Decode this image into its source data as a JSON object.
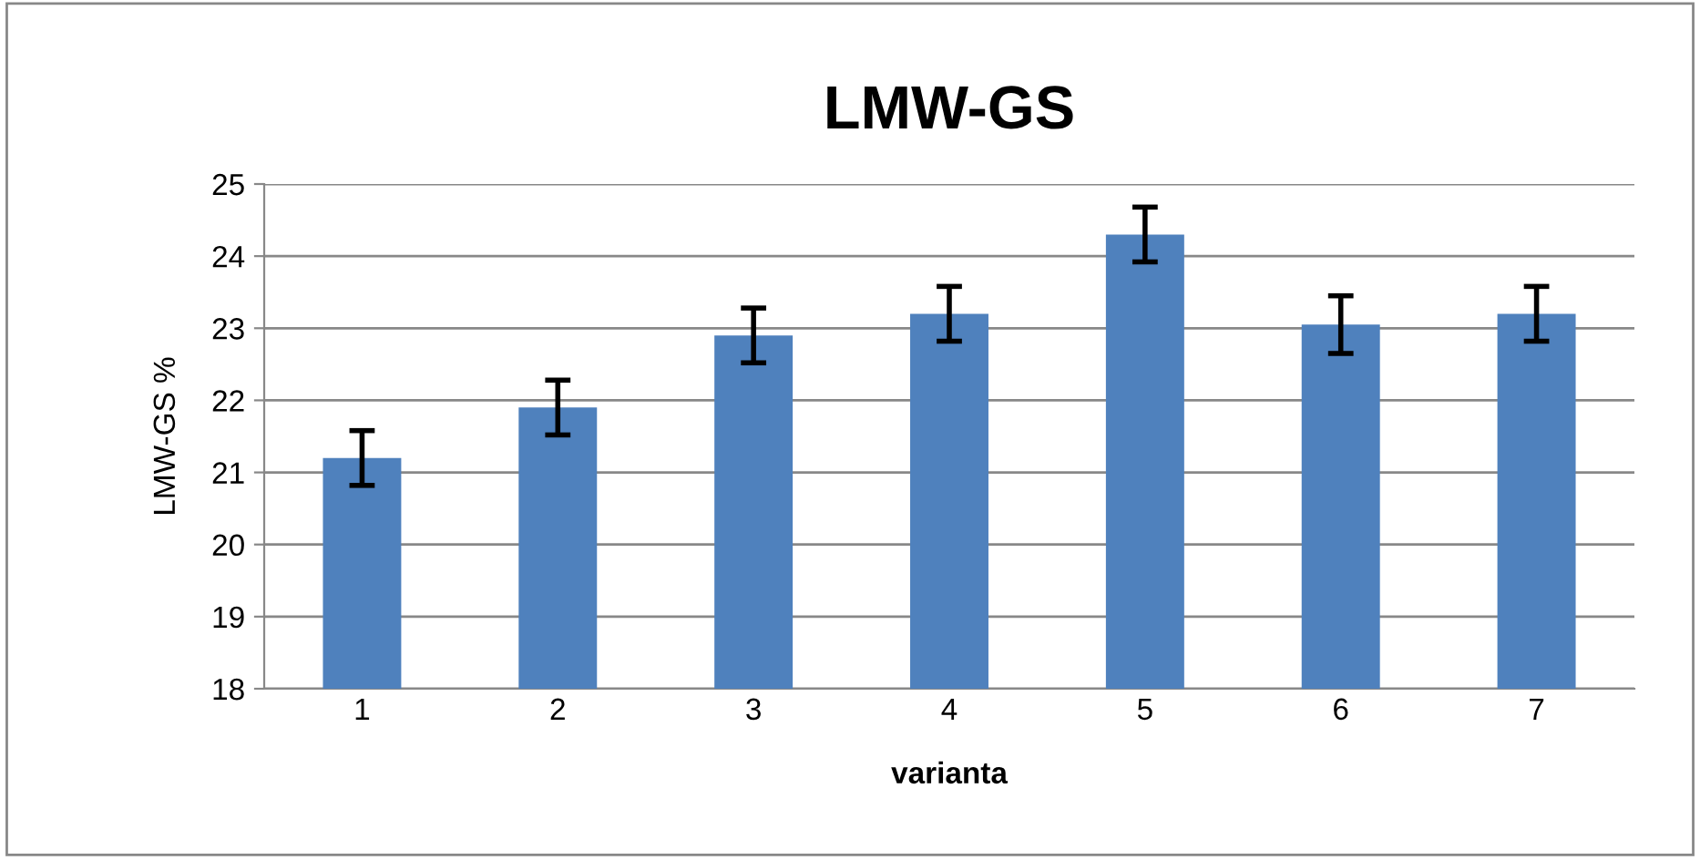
{
  "chart_data": {
    "type": "bar",
    "title": "LMW-GS",
    "xlabel": "varianta",
    "ylabel": "LMW-GS %",
    "categories": [
      "1",
      "2",
      "3",
      "4",
      "5",
      "6",
      "7"
    ],
    "values": [
      21.2,
      21.9,
      22.9,
      23.2,
      24.3,
      23.05,
      23.2
    ],
    "errors": [
      0.38,
      0.38,
      0.38,
      0.38,
      0.38,
      0.4,
      0.38
    ],
    "color": "#4f81bd",
    "ylim": [
      18,
      25
    ],
    "yticks": [
      18,
      19,
      20,
      21,
      22,
      23,
      24,
      25
    ],
    "grid": "y"
  }
}
